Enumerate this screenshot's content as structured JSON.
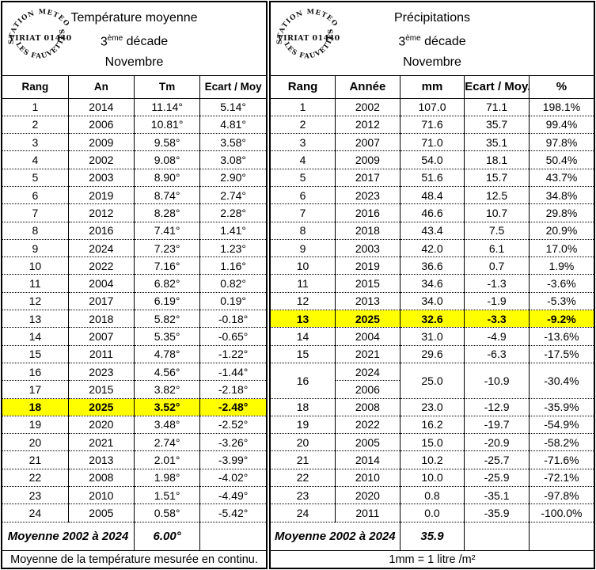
{
  "stamp": {
    "arc_top": "STATION METEO",
    "center": "VIRIAT 01440",
    "arc_bottom": "LES FAUVETTES"
  },
  "left_table": {
    "title": "Température moyenne",
    "decade_num": "3",
    "decade_sup": "ème",
    "decade_word": "décade",
    "month": "Novembre",
    "headers": [
      "Rang",
      "An",
      "Tm",
      "Ecart / Moy"
    ],
    "rows": [
      {
        "rang": "1",
        "an": "2014",
        "tm": "11.14°",
        "ecart": "5.14°"
      },
      {
        "rang": "2",
        "an": "2006",
        "tm": "10.81°",
        "ecart": "4.81°"
      },
      {
        "rang": "3",
        "an": "2009",
        "tm": "9.58°",
        "ecart": "3.58°"
      },
      {
        "rang": "4",
        "an": "2002",
        "tm": "9.08°",
        "ecart": "3.08°"
      },
      {
        "rang": "5",
        "an": "2003",
        "tm": "8.90°",
        "ecart": "2.90°"
      },
      {
        "rang": "6",
        "an": "2019",
        "tm": "8.74°",
        "ecart": "2.74°"
      },
      {
        "rang": "7",
        "an": "2012",
        "tm": "8.28°",
        "ecart": "2.28°"
      },
      {
        "rang": "8",
        "an": "2016",
        "tm": "7.41°",
        "ecart": "1.41°"
      },
      {
        "rang": "9",
        "an": "2024",
        "tm": "7.23°",
        "ecart": "1.23°"
      },
      {
        "rang": "10",
        "an": "2022",
        "tm": "7.16°",
        "ecart": "1.16°"
      },
      {
        "rang": "11",
        "an": "2004",
        "tm": "6.82°",
        "ecart": "0.82°"
      },
      {
        "rang": "12",
        "an": "2017",
        "tm": "6.19°",
        "ecart": "0.19°"
      },
      {
        "rang": "13",
        "an": "2018",
        "tm": "5.82°",
        "ecart": "-0.18°"
      },
      {
        "rang": "14",
        "an": "2007",
        "tm": "5.35°",
        "ecart": "-0.65°"
      },
      {
        "rang": "15",
        "an": "2011",
        "tm": "4.78°",
        "ecart": "-1.22°"
      },
      {
        "rang": "16",
        "an": "2023",
        "tm": "4.56°",
        "ecart": "-1.44°"
      },
      {
        "rang": "17",
        "an": "2015",
        "tm": "3.82°",
        "ecart": "-2.18°"
      },
      {
        "rang": "18",
        "an": "2025",
        "tm": "3.52°",
        "ecart": "-2.48°",
        "highlight": true
      },
      {
        "rang": "19",
        "an": "2020",
        "tm": "3.48°",
        "ecart": "-2.52°"
      },
      {
        "rang": "20",
        "an": "2021",
        "tm": "2.74°",
        "ecart": "-3.26°"
      },
      {
        "rang": "21",
        "an": "2013",
        "tm": "2.01°",
        "ecart": "-3.99°"
      },
      {
        "rang": "22",
        "an": "2008",
        "tm": "1.98°",
        "ecart": "-4.02°"
      },
      {
        "rang": "23",
        "an": "2010",
        "tm": "1.51°",
        "ecart": "-4.49°"
      },
      {
        "rang": "24",
        "an": "2005",
        "tm": "0.58°",
        "ecart": "-5.42°"
      }
    ],
    "footer": {
      "label": "Moyenne 2002 à 2024",
      "value": "6.00°"
    },
    "note": "Moyenne de la température mesurée en continu."
  },
  "right_table": {
    "title": "Précipitations",
    "decade_num": "3",
    "decade_sup": "ème",
    "decade_word": "décade",
    "month": "Novembre",
    "headers": [
      "Rang",
      "Année",
      "mm",
      "Ecart / Moy.",
      "%"
    ],
    "rows": [
      {
        "rang": "1",
        "annee": "2002",
        "mm": "107.0",
        "ecart": "71.1",
        "pct": "198.1%"
      },
      {
        "rang": "2",
        "annee": "2012",
        "mm": "71.6",
        "ecart": "35.7",
        "pct": "99.4%"
      },
      {
        "rang": "3",
        "annee": "2007",
        "mm": "71.0",
        "ecart": "35.1",
        "pct": "97.8%"
      },
      {
        "rang": "4",
        "annee": "2009",
        "mm": "54.0",
        "ecart": "18.1",
        "pct": "50.4%"
      },
      {
        "rang": "5",
        "annee": "2017",
        "mm": "51.6",
        "ecart": "15.7",
        "pct": "43.7%"
      },
      {
        "rang": "6",
        "annee": "2023",
        "mm": "48.4",
        "ecart": "12.5",
        "pct": "34.8%"
      },
      {
        "rang": "7",
        "annee": "2016",
        "mm": "46.6",
        "ecart": "10.7",
        "pct": "29.8%"
      },
      {
        "rang": "8",
        "annee": "2018",
        "mm": "43.4",
        "ecart": "7.5",
        "pct": "20.9%"
      },
      {
        "rang": "9",
        "annee": "2003",
        "mm": "42.0",
        "ecart": "6.1",
        "pct": "17.0%"
      },
      {
        "rang": "10",
        "annee": "2019",
        "mm": "36.6",
        "ecart": "0.7",
        "pct": "1.9%"
      },
      {
        "rang": "11",
        "annee": "2015",
        "mm": "34.6",
        "ecart": "-1.3",
        "pct": "-3.6%"
      },
      {
        "rang": "12",
        "annee": "2013",
        "mm": "34.0",
        "ecart": "-1.9",
        "pct": "-5.3%"
      },
      {
        "rang": "13",
        "annee": "2025",
        "mm": "32.6",
        "ecart": "-3.3",
        "pct": "-9.2%",
        "highlight": true
      },
      {
        "rang": "14",
        "annee": "2004",
        "mm": "31.0",
        "ecart": "-4.9",
        "pct": "-13.6%"
      },
      {
        "rang": "15",
        "annee": "2021",
        "mm": "29.6",
        "ecart": "-6.3",
        "pct": "-17.5%"
      },
      {
        "rang": "16",
        "annee": "2024",
        "annee2": "2006",
        "mm": "25.0",
        "ecart": "-10.9",
        "pct": "-30.4%",
        "merged": true
      },
      {
        "rang": "18",
        "annee": "2008",
        "mm": "23.0",
        "ecart": "-12.9",
        "pct": "-35.9%"
      },
      {
        "rang": "19",
        "annee": "2022",
        "mm": "16.2",
        "ecart": "-19.7",
        "pct": "-54.9%"
      },
      {
        "rang": "20",
        "annee": "2005",
        "mm": "15.0",
        "ecart": "-20.9",
        "pct": "-58.2%"
      },
      {
        "rang": "21",
        "annee": "2014",
        "mm": "10.2",
        "ecart": "-25.7",
        "pct": "-71.6%"
      },
      {
        "rang": "22",
        "annee": "2010",
        "mm": "10.0",
        "ecart": "-25.9",
        "pct": "-72.1%"
      },
      {
        "rang": "23",
        "annee": "2020",
        "mm": "0.8",
        "ecart": "-35.1",
        "pct": "-97.8%"
      },
      {
        "rang": "24",
        "annee": "2011",
        "mm": "0.0",
        "ecart": "-35.9",
        "pct": "-100.0%"
      }
    ],
    "footer": {
      "label": "Moyenne 2002 à 2024",
      "value": "35.9"
    },
    "note": "1mm = 1 litre /m²"
  },
  "colors": {
    "highlight": "#ffff00",
    "border": "#000000",
    "background": "#ffffff"
  }
}
